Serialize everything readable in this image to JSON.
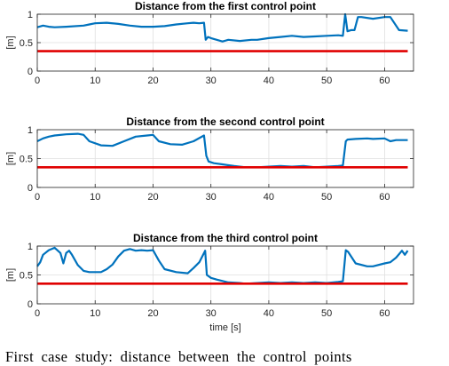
{
  "chart_data": [
    {
      "type": "line",
      "title": "Distance from the first control point",
      "xlabel": "",
      "ylabel": "[m]",
      "xlim": [
        0,
        65
      ],
      "ylim": [
        0,
        1
      ],
      "xticks": [
        0,
        10,
        20,
        30,
        40,
        50,
        60
      ],
      "yticks": [
        0,
        0.5,
        1
      ],
      "grid": true,
      "series": [
        {
          "color": "#0072BD",
          "x": [
            0,
            1,
            2,
            3,
            5,
            8,
            9,
            10,
            12,
            14,
            16,
            18,
            20,
            22,
            24,
            26,
            27,
            28,
            28.8,
            29.1,
            29.5,
            30,
            31,
            32,
            33,
            35,
            37,
            38,
            40,
            42,
            44,
            46,
            48,
            50,
            52,
            52.8,
            53.2,
            53.6,
            54.2,
            54.8,
            55.4,
            56,
            58,
            60,
            61,
            62.5,
            64
          ],
          "y": [
            0.77,
            0.8,
            0.78,
            0.77,
            0.78,
            0.8,
            0.82,
            0.84,
            0.85,
            0.83,
            0.8,
            0.78,
            0.78,
            0.79,
            0.82,
            0.84,
            0.85,
            0.84,
            0.85,
            0.55,
            0.6,
            0.58,
            0.55,
            0.52,
            0.55,
            0.53,
            0.55,
            0.55,
            0.58,
            0.6,
            0.62,
            0.6,
            0.61,
            0.62,
            0.63,
            0.62,
            1.0,
            0.7,
            0.72,
            0.72,
            0.95,
            0.95,
            0.92,
            0.95,
            0.95,
            0.72,
            0.71
          ]
        },
        {
          "color": "#E00000",
          "x": [
            0,
            64
          ],
          "y": [
            0.35,
            0.35
          ]
        }
      ]
    },
    {
      "type": "line",
      "title": "Distance from the second control point",
      "xlabel": "",
      "ylabel": "[m]",
      "xlim": [
        0,
        65
      ],
      "ylim": [
        0,
        1
      ],
      "xticks": [
        0,
        10,
        20,
        30,
        40,
        50,
        60
      ],
      "yticks": [
        0,
        0.5,
        1
      ],
      "grid": true,
      "series": [
        {
          "color": "#0072BD",
          "x": [
            0,
            1,
            2,
            3,
            5,
            7,
            8,
            9,
            11,
            13,
            15,
            17,
            19,
            20,
            21,
            23,
            25,
            27,
            28.8,
            29.2,
            29.6,
            30.5,
            32,
            34,
            35,
            36,
            38,
            40,
            42,
            44,
            46,
            48,
            50,
            52,
            52.8,
            53.3,
            53.6,
            55,
            57,
            58,
            60,
            61,
            62,
            64
          ],
          "y": [
            0.8,
            0.85,
            0.88,
            0.9,
            0.92,
            0.93,
            0.91,
            0.8,
            0.73,
            0.72,
            0.8,
            0.88,
            0.9,
            0.91,
            0.8,
            0.75,
            0.74,
            0.8,
            0.9,
            0.55,
            0.45,
            0.42,
            0.4,
            0.37,
            0.36,
            0.35,
            0.35,
            0.36,
            0.37,
            0.36,
            0.37,
            0.35,
            0.36,
            0.37,
            0.38,
            0.8,
            0.83,
            0.84,
            0.85,
            0.84,
            0.85,
            0.8,
            0.82,
            0.82
          ]
        },
        {
          "color": "#E00000",
          "x": [
            0,
            64
          ],
          "y": [
            0.35,
            0.35
          ]
        }
      ]
    },
    {
      "type": "line",
      "title": "Distance from the third control point",
      "xlabel": "time [s]",
      "ylabel": "[m]",
      "xlim": [
        0,
        65
      ],
      "ylim": [
        0,
        1
      ],
      "xticks": [
        0,
        10,
        20,
        30,
        40,
        50,
        60
      ],
      "yticks": [
        0,
        0.5,
        1
      ],
      "grid": true,
      "series": [
        {
          "color": "#0072BD",
          "x": [
            0,
            0.5,
            1,
            2,
            3,
            4,
            4.5,
            5,
            5.5,
            6,
            7,
            8,
            9,
            11,
            12,
            13,
            14,
            15,
            16,
            17,
            18,
            19,
            20,
            21,
            22,
            24,
            26,
            27,
            28,
            29,
            29.3,
            30,
            31,
            33,
            35,
            36,
            38,
            40,
            42,
            44,
            46,
            48,
            50,
            52,
            52.8,
            53.3,
            53.7,
            55,
            57,
            58,
            60,
            61,
            62,
            63,
            63.5,
            64
          ],
          "y": [
            0.65,
            0.72,
            0.85,
            0.93,
            0.97,
            0.88,
            0.7,
            0.88,
            0.92,
            0.85,
            0.67,
            0.57,
            0.55,
            0.55,
            0.6,
            0.68,
            0.82,
            0.92,
            0.95,
            0.92,
            0.93,
            0.92,
            0.93,
            0.75,
            0.6,
            0.55,
            0.53,
            0.62,
            0.72,
            0.92,
            0.5,
            0.45,
            0.42,
            0.37,
            0.36,
            0.35,
            0.36,
            0.37,
            0.36,
            0.37,
            0.36,
            0.37,
            0.36,
            0.38,
            0.39,
            0.93,
            0.9,
            0.7,
            0.65,
            0.65,
            0.7,
            0.72,
            0.8,
            0.92,
            0.85,
            0.92
          ]
        },
        {
          "color": "#E00000",
          "x": [
            0,
            64
          ],
          "y": [
            0.35,
            0.35
          ]
        }
      ]
    }
  ],
  "caption": "First case study: distance between the control points"
}
